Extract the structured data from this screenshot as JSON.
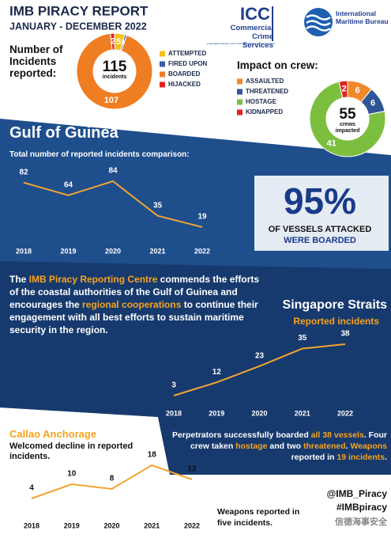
{
  "header": {
    "title": "IMB PIRACY REPORT",
    "subtitle": "JANUARY - DECEMBER 2022"
  },
  "logos": {
    "icc": "ICC",
    "icc_name": "Commercial Crime Services",
    "icc_tagline": "A specialised division of the International Chamber of Commerce",
    "imb_name": "International Maritime Bureau"
  },
  "chart_data": [
    {
      "type": "donut",
      "title": "Number of Incidents reported:",
      "total": 115,
      "total_label": "incidents",
      "categories": [
        "ATTEMPTED",
        "FIRED UPON",
        "BOARDED",
        "HIJACKED"
      ],
      "values": [
        5,
        1,
        107,
        2
      ],
      "colors": [
        "#f5c21b",
        "#3a5ea8",
        "#ef7d22",
        "#e02424"
      ]
    },
    {
      "type": "donut",
      "title": "Impact on crew:",
      "total": 55,
      "total_label": "crews impacted",
      "categories": [
        "ASSAULTED",
        "THREATENED",
        "HOSTAGE",
        "KIDNAPPED"
      ],
      "values": [
        6,
        6,
        41,
        2
      ],
      "colors": [
        "#ef8a2a",
        "#2f5597",
        "#7cbf3f",
        "#e02424"
      ]
    },
    {
      "type": "line",
      "title": "Gulf of Guinea",
      "subtitle": "Total number of reported incidents comparison:",
      "categories": [
        "2018",
        "2019",
        "2020",
        "2021",
        "2022"
      ],
      "values": [
        82,
        64,
        84,
        35,
        19
      ],
      "color": "#f0a531"
    },
    {
      "type": "line",
      "title": "Singapore Straits",
      "subtitle": "Reported incidents",
      "categories": [
        "2018",
        "2019",
        "2020",
        "2021",
        "2022"
      ],
      "values": [
        3,
        12,
        23,
        35,
        38
      ],
      "color": "#f0a531"
    },
    {
      "type": "line",
      "title": "Callao Anchorage",
      "subtitle": "Welcomed decline in reported incidents.",
      "categories": [
        "2018",
        "2019",
        "2020",
        "2021",
        "2022"
      ],
      "values": [
        4,
        10,
        8,
        18,
        12
      ],
      "color": "#f0a531"
    }
  ],
  "stat": {
    "value": "95%",
    "line1": "OF VESSELS ATTACKED",
    "line2": "WERE BOARDED"
  },
  "gulf_text": [
    {
      "text": "The ",
      "accent": false
    },
    {
      "text": "IMB Piracy Reporting Centre",
      "accent": true
    },
    {
      "text": " commends the efforts of the coastal authorities of the Gulf of Guinea and encourages the ",
      "accent": false
    },
    {
      "text": "regional cooperations",
      "accent": true
    },
    {
      "text": " to continue their engagement with all best efforts to sustain maritime security in the region.",
      "accent": false
    }
  ],
  "singapore_text": [
    {
      "text": "Perpetrators successfully boarded ",
      "accent": false
    },
    {
      "text": "all 38 vessels",
      "accent": true
    },
    {
      "text": ". Four crew taken ",
      "accent": false
    },
    {
      "text": "hostage",
      "accent": true
    },
    {
      "text": " and two ",
      "accent": false
    },
    {
      "text": "threatened",
      "accent": true
    },
    {
      "text": ". ",
      "accent": false
    },
    {
      "text": "Weapons",
      "accent": true
    },
    {
      "text": " reported in ",
      "accent": false
    },
    {
      "text": "19 incidents",
      "accent": true
    },
    {
      "text": ".",
      "accent": false
    }
  ],
  "callao_note": "Weapons reported in five incidents.",
  "footer": {
    "handle": "@IMB_Piracy",
    "hashtag": "#IMBpiracy",
    "watermark": "信德海事安全"
  }
}
